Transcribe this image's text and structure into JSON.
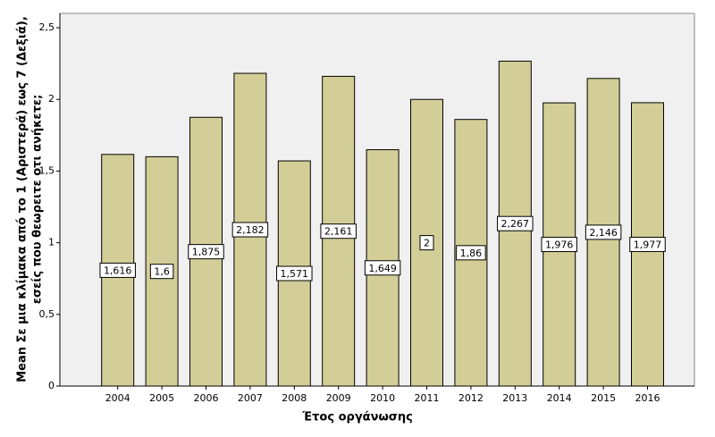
{
  "chart_data": {
    "type": "bar",
    "y_label": [
      "Mean Σε μια κλίμακα από το 1 (Αριστερά) εως 7 (Δεξιά),",
      "εσείς που θεωρειτε οτι ανήκετε;"
    ],
    "x_label": "Έτος οργάνωσης",
    "categories": [
      "2004",
      "2005",
      "2006",
      "2007",
      "2008",
      "2009",
      "2010",
      "2011",
      "2012",
      "2013",
      "2014",
      "2015",
      "2016"
    ],
    "values": [
      1.616,
      1.6,
      1.875,
      2.182,
      1.571,
      2.161,
      1.649,
      2,
      1.86,
      2.267,
      1.976,
      2.146,
      1.977
    ],
    "value_labels": [
      "1,616",
      "1,6",
      "1,875",
      "2,182",
      "1,571",
      "2,161",
      "1,649",
      "2",
      "1,86",
      "2,267",
      "1,976",
      "2,146",
      "1,977"
    ],
    "color": "#d3ce97",
    "ylim": [
      0,
      2.6
    ],
    "yticks": [
      0,
      {
        "value": 0.5,
        "label": "0,5"
      },
      1,
      {
        "value": 1.5,
        "label": "1,5"
      },
      2,
      {
        "value": 2.5,
        "label": "2,5"
      }
    ],
    "grid": false
  }
}
